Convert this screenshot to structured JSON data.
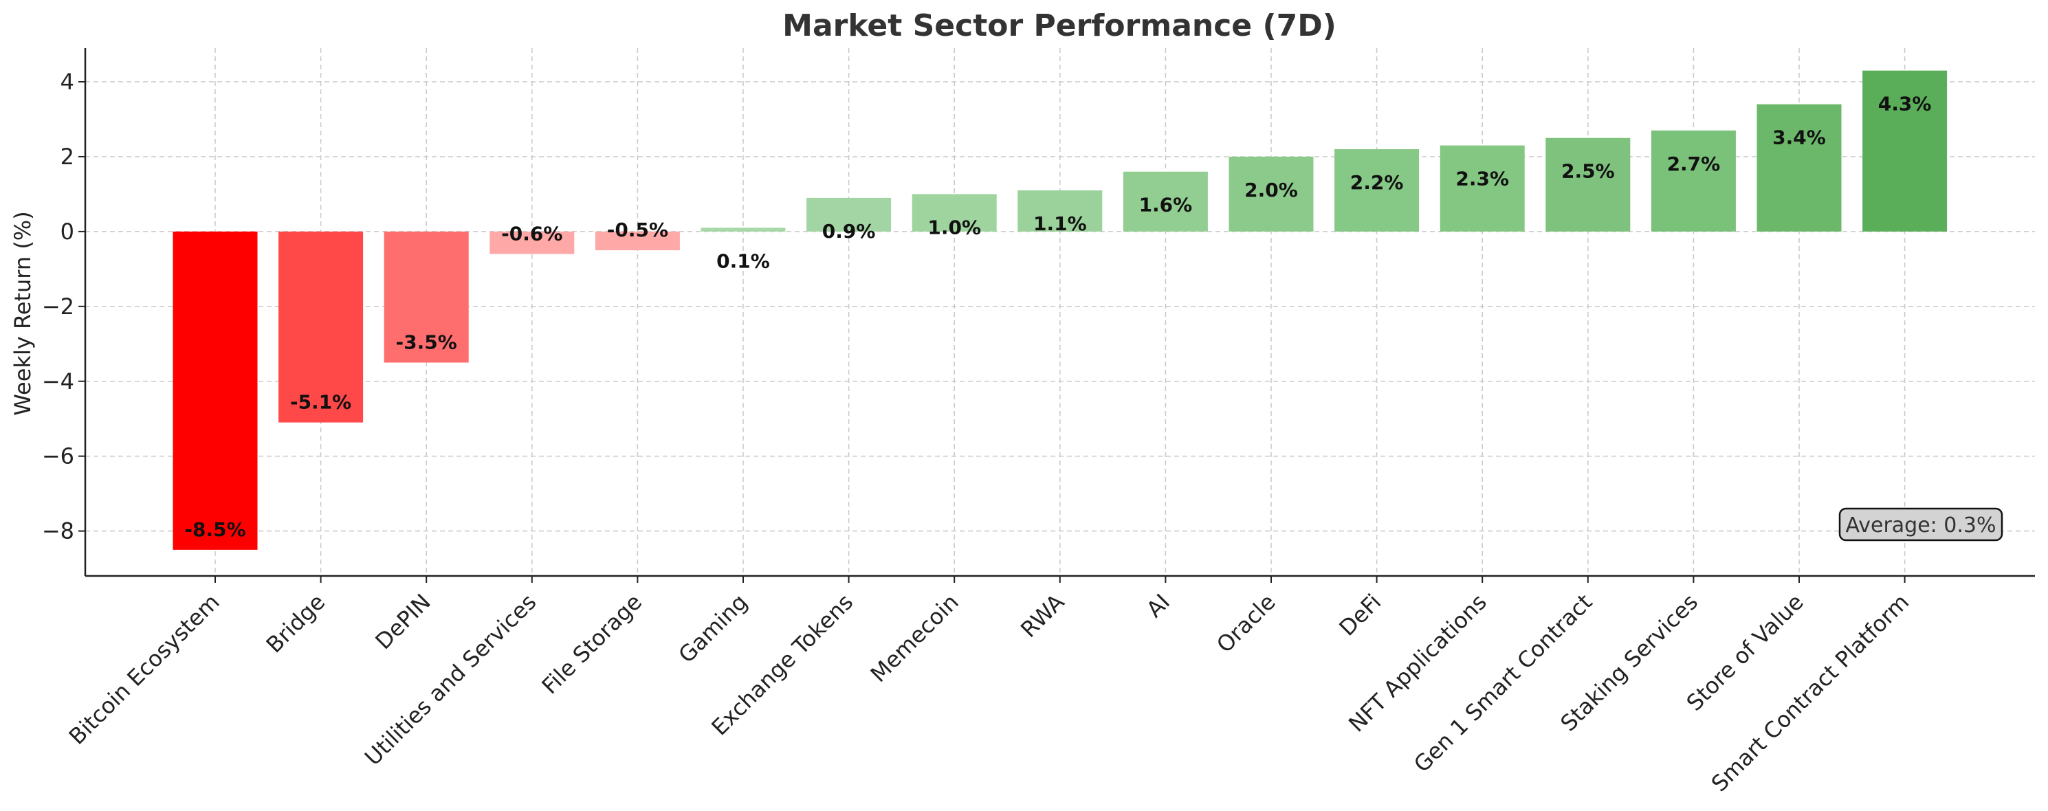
{
  "chart_data": {
    "type": "bar",
    "title": "Market Sector Performance (7D)",
    "xlabel": "",
    "ylabel": "Weekly Return (%)",
    "ylim": [
      -9.2,
      4.9
    ],
    "yticks": [
      -8,
      -6,
      -4,
      -2,
      0,
      2,
      4
    ],
    "ytick_labels": [
      "−8",
      "−6",
      "−4",
      "−2",
      "0",
      "2",
      "4"
    ],
    "grid": true,
    "categories": [
      "Bitcoin Ecosystem",
      "Bridge",
      "DePIN",
      "Utilities and Services",
      "File Storage",
      "Gaming",
      "Exchange Tokens",
      "Memecoin",
      "RWA",
      "AI",
      "Oracle",
      "DeFi",
      "NFT Applications",
      "Gen 1 Smart Contract",
      "Staking Services",
      "Store of Value",
      "Smart Contract Platform"
    ],
    "values": [
      -8.5,
      -5.1,
      -3.5,
      -0.6,
      -0.5,
      0.1,
      0.9,
      1.0,
      1.1,
      1.6,
      2.0,
      2.2,
      2.3,
      2.5,
      2.7,
      3.4,
      4.3
    ],
    "value_labels": [
      "-8.5%",
      "-5.1%",
      "-3.5%",
      "-0.6%",
      "-0.5%",
      "0.1%",
      "0.9%",
      "1.0%",
      "1.1%",
      "1.6%",
      "2.0%",
      "2.2%",
      "2.3%",
      "2.5%",
      "2.7%",
      "3.4%",
      "4.3%"
    ],
    "colors": [
      "#ff0000",
      "#ff4848",
      "#ff6e6e",
      "#ffa8a8",
      "#ffa8a8",
      "#a8d8a8",
      "#a3d4a3",
      "#a0d49f",
      "#9bd29b",
      "#92cd92",
      "#8cca8c",
      "#86c886",
      "#84c783",
      "#7ec27e",
      "#7ac17a",
      "#6bb86b",
      "#5aae5a"
    ],
    "annotation": "Average: 0.3%"
  }
}
